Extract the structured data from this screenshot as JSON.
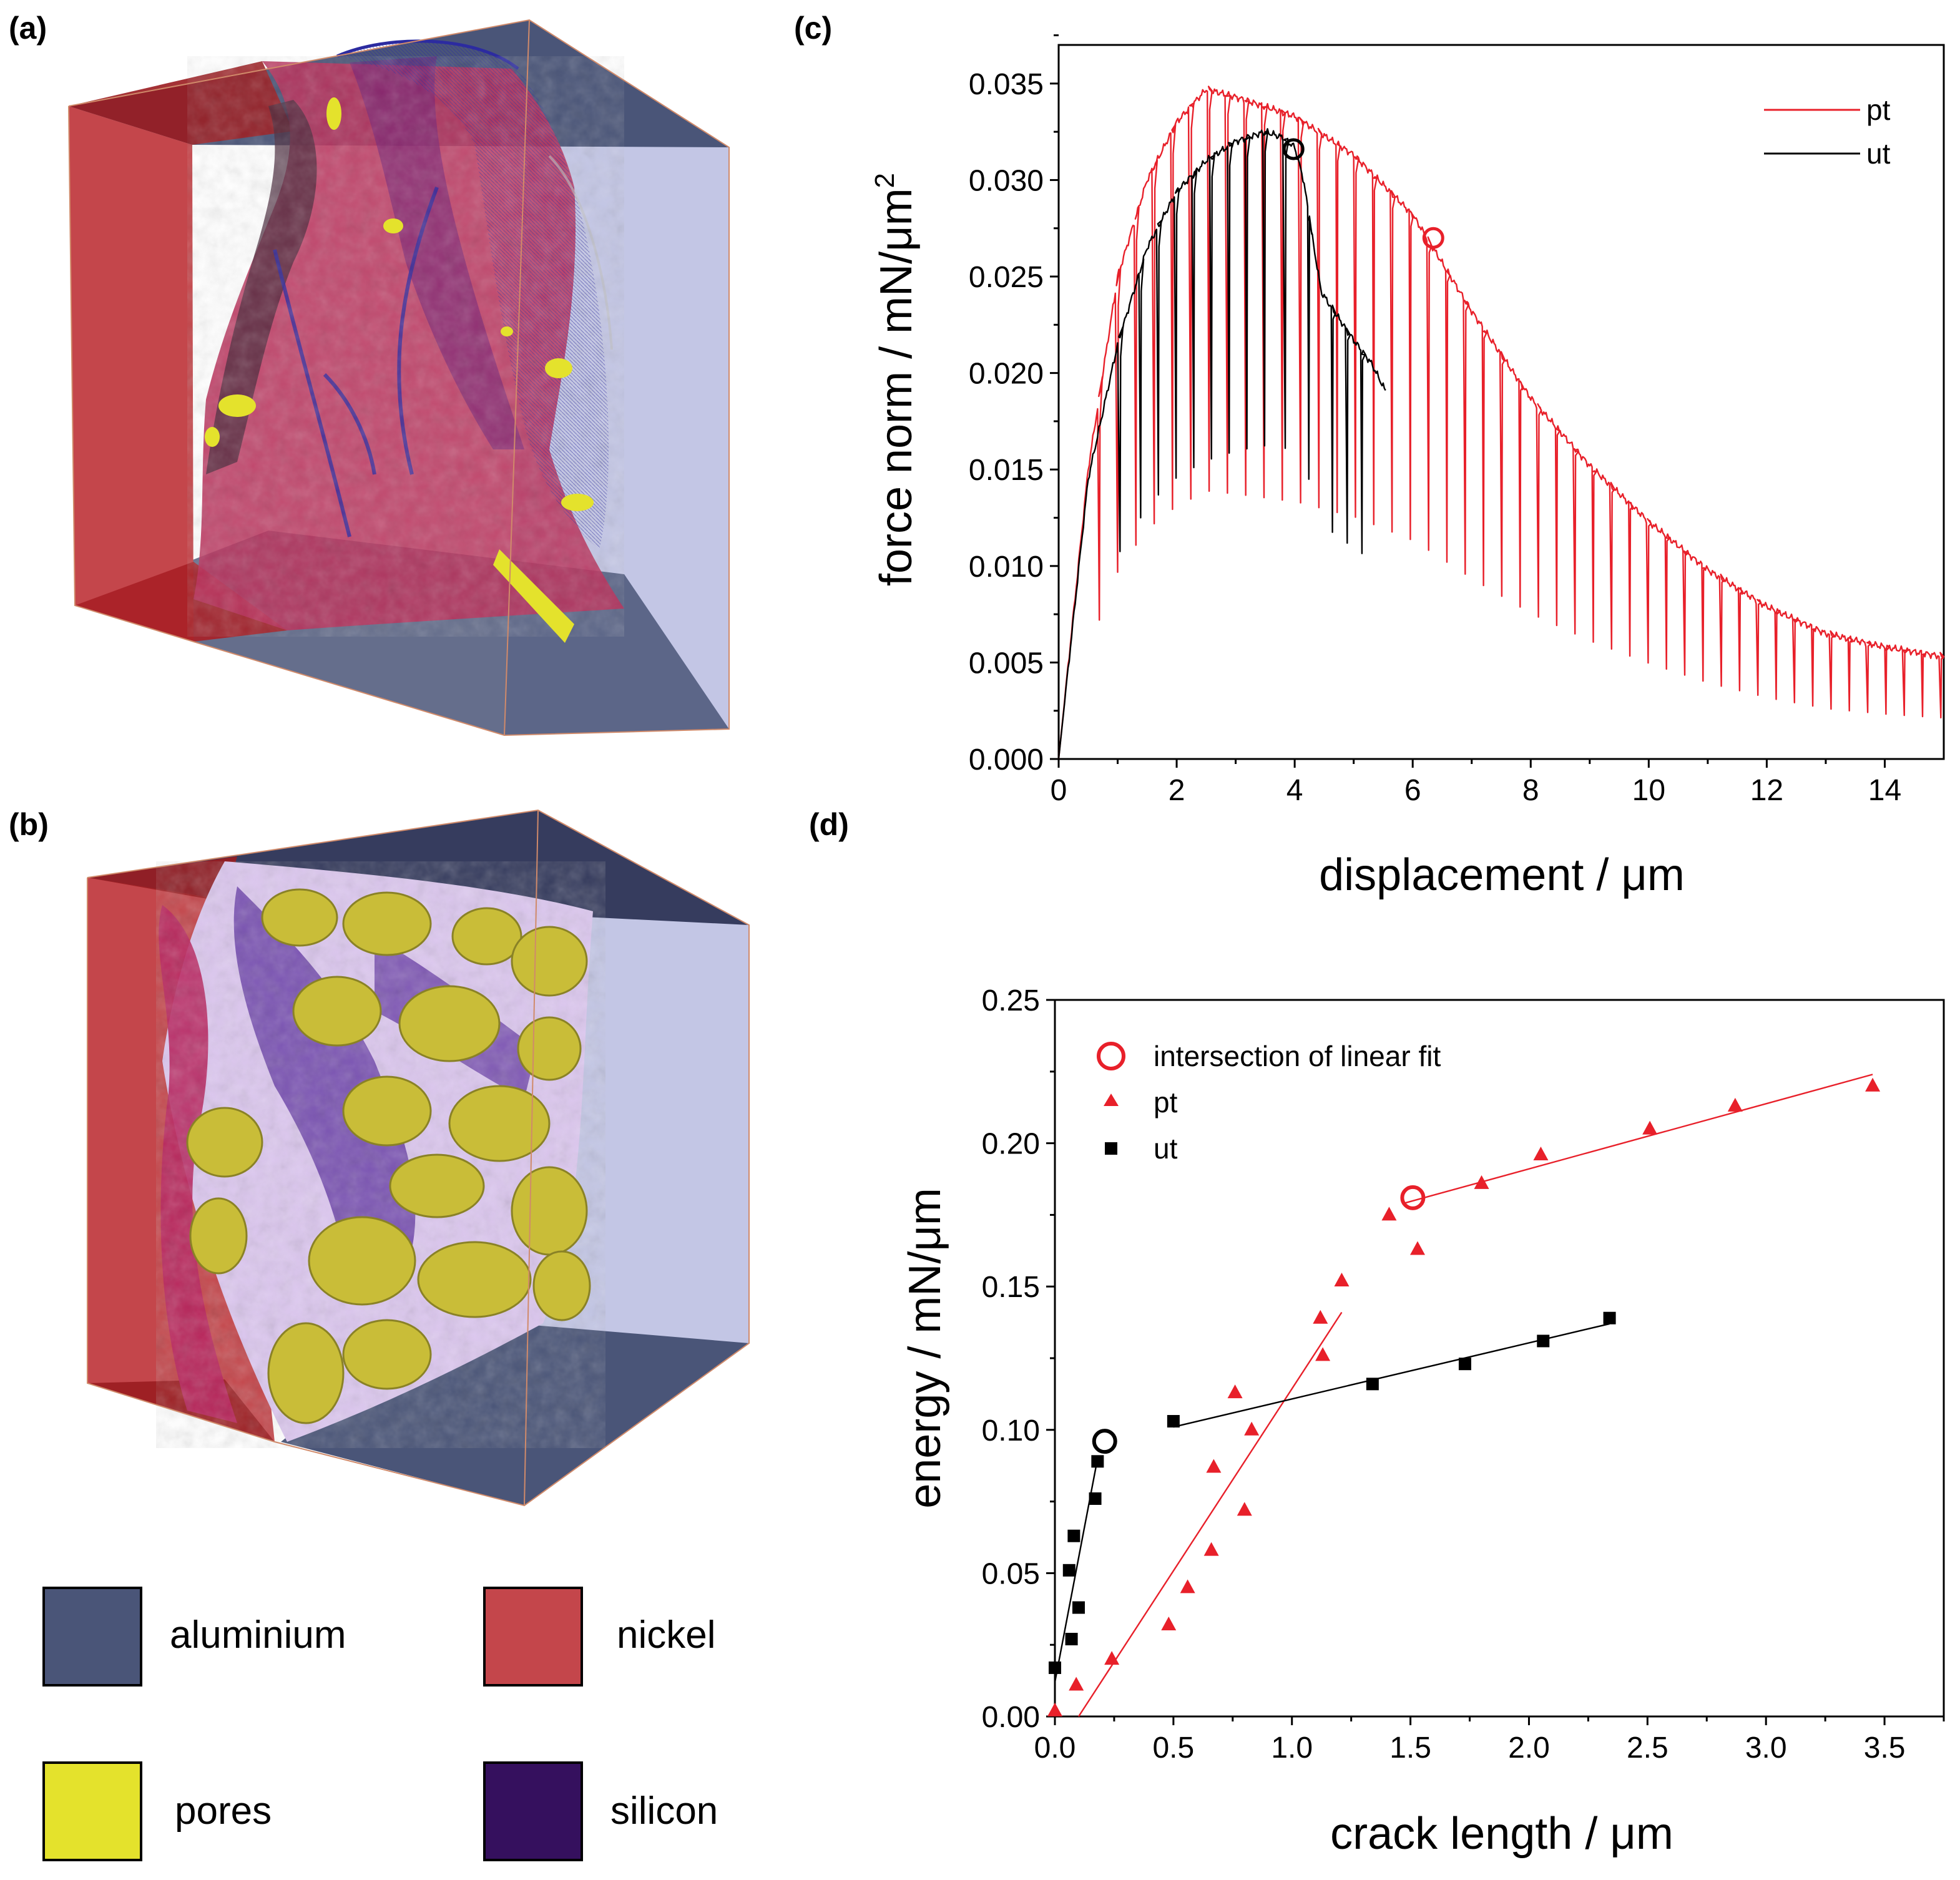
{
  "panels": {
    "a": "(a)",
    "b": "(b)",
    "c": "(c)",
    "d": "(d)"
  },
  "legend_key": [
    {
      "label": "aluminium",
      "color": "#4a5578"
    },
    {
      "label": "nickel",
      "color": "#c4464b"
    },
    {
      "label": "pores",
      "color": "#e4e22c"
    },
    {
      "label": "silicon",
      "color": "#35105e"
    }
  ],
  "colors": {
    "red": "#e8202a",
    "black": "#000000",
    "nickel": "#c4464b",
    "aluminium": "#4a5578",
    "light_aluminium": "#c3c6e5",
    "pores": "#e4e22c",
    "silicon": "#35105e"
  },
  "chart_data": [
    {
      "id": "c",
      "type": "line",
      "xlabel": "displacement / μm",
      "ylabel_main": "force norm / mN/μm",
      "ylabel_sup": "2",
      "xlim": [
        0,
        15
      ],
      "ylim": [
        0,
        0.037
      ],
      "xticks": [
        0,
        2,
        4,
        6,
        8,
        10,
        12,
        14
      ],
      "yticks": [
        "0.000",
        "0.005",
        "0.010",
        "0.015",
        "0.020",
        "0.025",
        "0.030",
        "0.035"
      ],
      "series": [
        {
          "name": "pt",
          "color": "#e8202a",
          "envelope": [
            [
              0,
              0
            ],
            [
              0.5,
              0.015
            ],
            [
              1.0,
              0.025
            ],
            [
              1.5,
              0.03
            ],
            [
              2.0,
              0.033
            ],
            [
              2.5,
              0.0347
            ],
            [
              3.0,
              0.0343
            ],
            [
              4.0,
              0.0333
            ],
            [
              5.0,
              0.0313
            ],
            [
              6.0,
              0.0282
            ],
            [
              7.0,
              0.0232
            ],
            [
              8.0,
              0.0187
            ],
            [
              9.0,
              0.0152
            ],
            [
              10.0,
              0.0123
            ],
            [
              11.0,
              0.0098
            ],
            [
              12.0,
              0.0079
            ],
            [
              13.0,
              0.0065
            ],
            [
              14.0,
              0.0058
            ],
            [
              15.0,
              0.0053
            ]
          ],
          "unload_start": 0.65,
          "unload_step": 0.31,
          "unload_depth": 0.6
        },
        {
          "name": "ut",
          "color": "#000000",
          "envelope": [
            [
              0,
              0
            ],
            [
              0.5,
              0.0145
            ],
            [
              1.0,
              0.0215
            ],
            [
              1.5,
              0.0265
            ],
            [
              2.0,
              0.0294
            ],
            [
              2.5,
              0.031
            ],
            [
              3.0,
              0.032
            ],
            [
              3.5,
              0.0325
            ],
            [
              3.8,
              0.0322
            ],
            [
              4.0,
              0.0317
            ],
            [
              4.15,
              0.03
            ],
            [
              4.3,
              0.027
            ],
            [
              4.45,
              0.0242
            ],
            [
              4.6,
              0.0235
            ],
            [
              5.0,
              0.0217
            ],
            [
              5.3,
              0.0205
            ],
            [
              5.55,
              0.019
            ]
          ],
          "unload_x": [
            1.0,
            1.35,
            1.65,
            1.95,
            2.25,
            2.55,
            2.85,
            3.15,
            3.45,
            3.8,
            4.2,
            4.6,
            4.85,
            5.1
          ],
          "unload_depth": 0.5
        }
      ],
      "markers": [
        {
          "series": "ut",
          "x": 3.98,
          "y": 0.0316,
          "color": "#000000"
        },
        {
          "series": "pt",
          "x": 6.35,
          "y": 0.027,
          "color": "#e8202a"
        }
      ],
      "legend": [
        {
          "label": "pt",
          "color": "#e8202a"
        },
        {
          "label": "ut",
          "color": "#000000"
        }
      ]
    },
    {
      "id": "d",
      "type": "scatter",
      "xlabel": "crack length / μm",
      "ylabel": "energy / mN/μm",
      "xlim": [
        0,
        3.75
      ],
      "ylim": [
        0,
        0.25
      ],
      "xticks": [
        "0.0",
        "0.5",
        "1.0",
        "1.5",
        "2.0",
        "2.5",
        "3.0",
        "3.5"
      ],
      "yticks": [
        "0.00",
        "0.05",
        "0.10",
        "0.15",
        "0.20",
        "0.25"
      ],
      "series": [
        {
          "name": "pt",
          "marker": "triangle",
          "color": "#e8202a",
          "points": [
            [
              0.0,
              0.002
            ],
            [
              0.09,
              0.011
            ],
            [
              0.24,
              0.02
            ],
            [
              0.48,
              0.032
            ],
            [
              0.56,
              0.045
            ],
            [
              0.66,
              0.058
            ],
            [
              0.67,
              0.087
            ],
            [
              0.76,
              0.113
            ],
            [
              0.8,
              0.072
            ],
            [
              0.83,
              0.1
            ],
            [
              1.12,
              0.139
            ],
            [
              1.13,
              0.126
            ],
            [
              1.21,
              0.152
            ],
            [
              1.41,
              0.175
            ],
            [
              1.53,
              0.163
            ],
            [
              1.8,
              0.186
            ],
            [
              2.05,
              0.196
            ],
            [
              2.51,
              0.205
            ],
            [
              2.87,
              0.213
            ],
            [
              3.45,
              0.22
            ]
          ]
        },
        {
          "name": "ut",
          "marker": "square",
          "color": "#000000",
          "points": [
            [
              0.0,
              0.017
            ],
            [
              0.06,
              0.051
            ],
            [
              0.07,
              0.027
            ],
            [
              0.08,
              0.063
            ],
            [
              0.1,
              0.038
            ],
            [
              0.17,
              0.076
            ],
            [
              0.18,
              0.089
            ],
            [
              0.5,
              0.103
            ],
            [
              1.34,
              0.116
            ],
            [
              1.73,
              0.123
            ],
            [
              2.06,
              0.131
            ],
            [
              2.34,
              0.139
            ]
          ]
        }
      ],
      "fit_lines": [
        {
          "color": "#e8202a",
          "from": [
            0.1,
            0.0
          ],
          "to": [
            1.21,
            0.141
          ]
        },
        {
          "color": "#e8202a",
          "from": [
            1.47,
            0.179
          ],
          "to": [
            3.45,
            0.224
          ]
        },
        {
          "color": "#000000",
          "from": [
            0.0,
            0.012
          ],
          "to": [
            0.18,
            0.09
          ]
        },
        {
          "color": "#000000",
          "from": [
            0.5,
            0.101
          ],
          "to": [
            2.34,
            0.137
          ]
        }
      ],
      "markers": [
        {
          "x": 1.51,
          "y": 0.181,
          "color": "#e8202a"
        },
        {
          "x": 0.21,
          "y": 0.096,
          "color": "#000000"
        }
      ],
      "legend": [
        {
          "label": "intersection of linear fit",
          "marker": "circle",
          "color": "#e8202a"
        },
        {
          "label": "pt",
          "marker": "triangle",
          "color": "#e8202a"
        },
        {
          "label": "ut",
          "marker": "square",
          "color": "#000000"
        }
      ]
    }
  ]
}
